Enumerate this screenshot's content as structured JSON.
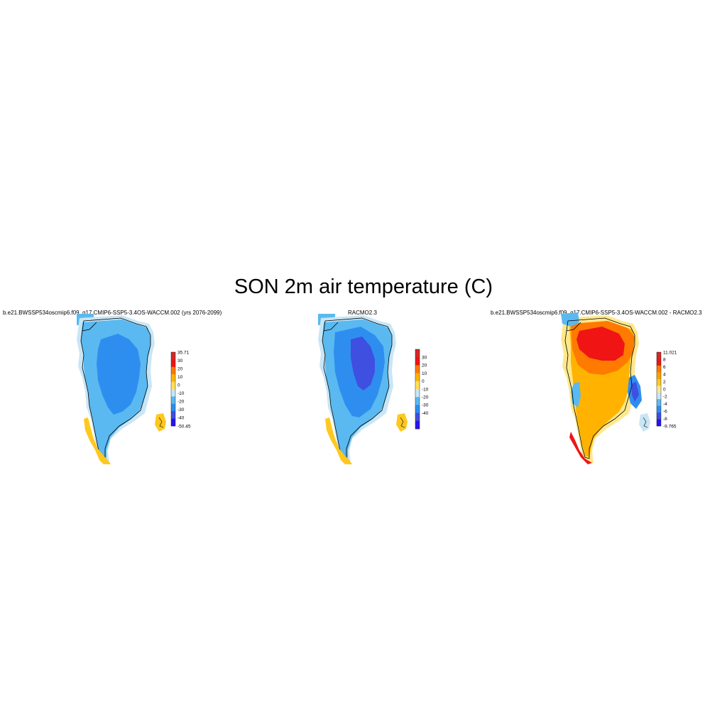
{
  "figure": {
    "title": "SON 2m air temperature (C)"
  },
  "panels": [
    {
      "title": "b.e21.BWSSP534oscmip6.f09_g17.CMIP6-SSP5-3.4OS-WACCM.002 (yrs 2076-2099)",
      "colorbar": {
        "labels": [
          "35.71",
          "30",
          "20",
          "10",
          "0",
          "-10",
          "-20",
          "-30",
          "-40",
          "-50.45"
        ],
        "colors": [
          "#d62828",
          "#f01414",
          "#ff7a00",
          "#ffb300",
          "#ffe05a",
          "#c8e6f5",
          "#5ab9f0",
          "#2e8ef0",
          "#3f4fe0",
          "#2a14f0"
        ]
      }
    },
    {
      "title": "RACMO2.3",
      "colorbar": {
        "labels": [
          "30",
          "20",
          "10",
          "0",
          "-10",
          "-20",
          "-30",
          "-40"
        ],
        "colors": [
          "#d62828",
          "#f01414",
          "#ff7a00",
          "#ffb300",
          "#ffe05a",
          "#c8e6f5",
          "#5ab9f0",
          "#2e8ef0",
          "#3f4fe0",
          "#2a14f0"
        ]
      }
    },
    {
      "title": "b.e21.BWSSP534oscmip6.f09_g17.CMIP6-SSP5-3.4OS-WACCM.002 - RACMO2.3",
      "colorbar": {
        "labels": [
          "11.021",
          "8",
          "6",
          "4",
          "2",
          "0",
          "-2",
          "-4",
          "-6",
          "-8",
          "-9.765"
        ],
        "colors": [
          "#d62828",
          "#f01414",
          "#ff7a00",
          "#ffa000",
          "#ffc81e",
          "#ffe88c",
          "#c8e6f5",
          "#5ab9f0",
          "#2e8ef0",
          "#3f4fe0",
          "#2a14f0"
        ]
      }
    }
  ]
}
